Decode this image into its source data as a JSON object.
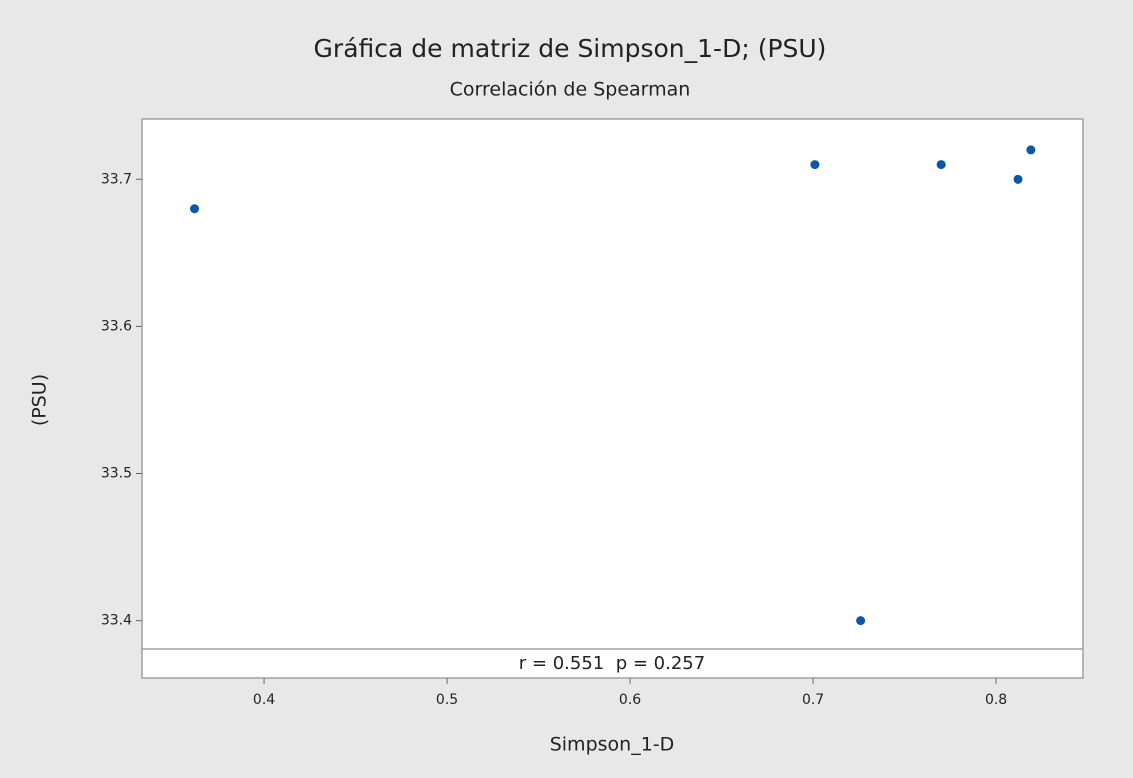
{
  "chart_data": {
    "type": "scatter",
    "title": "Gráfica de matriz de Simpson_1-D; (PSU)",
    "subtitle": "Correlación de Spearman",
    "x_label": "Simpson_1-D",
    "y_label": "(PSU)",
    "annotation": "r = 0.551  p = 0.257",
    "x": [
      0.362,
      0.701,
      0.77,
      0.812,
      0.819,
      0.726
    ],
    "values": [
      33.68,
      33.71,
      33.71,
      33.7,
      33.72,
      33.4
    ],
    "color": "#0a57a8",
    "xlim": [
      0.3333,
      0.8475
    ],
    "ylim": [
      33.361,
      33.741
    ],
    "xticks": [
      0.4,
      0.5,
      0.6,
      0.7,
      0.8
    ],
    "yticks": [
      33.4,
      33.5,
      33.6,
      33.7
    ]
  }
}
